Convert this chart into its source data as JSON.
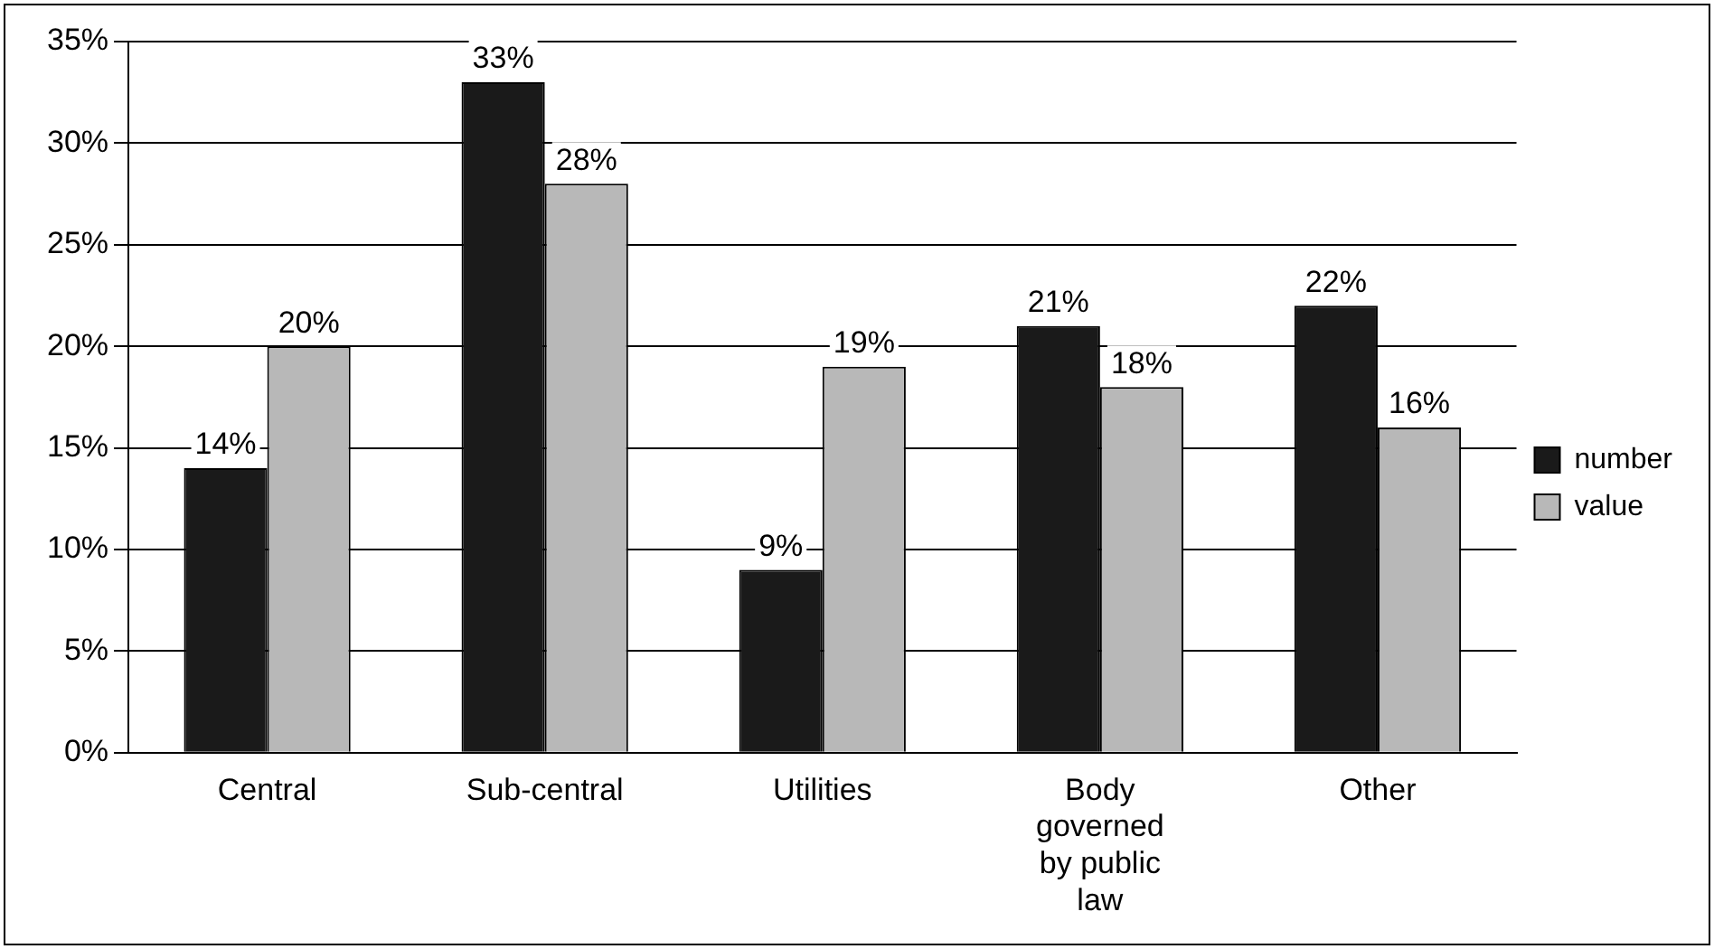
{
  "chart_data": {
    "type": "bar",
    "categories": [
      "Central",
      "Sub-central",
      "Utilities",
      "Body governed by public law",
      "Other"
    ],
    "series": [
      {
        "name": "number",
        "color": "#1a1a1a",
        "values": [
          14,
          33,
          9,
          21,
          22
        ],
        "value_labels": [
          "14%",
          "33%",
          "9%",
          "21%",
          "22%"
        ]
      },
      {
        "name": "value",
        "color": "#b8b8b8",
        "values": [
          20,
          28,
          19,
          18,
          16
        ],
        "value_labels": [
          "20%",
          "28%",
          "19%",
          "18%",
          "16%"
        ]
      }
    ],
    "ylim": [
      0,
      35
    ],
    "yticks": [
      {
        "value": 0,
        "label": "0%"
      },
      {
        "value": 5,
        "label": "5%"
      },
      {
        "value": 10,
        "label": "10%"
      },
      {
        "value": 15,
        "label": "15%"
      },
      {
        "value": 20,
        "label": "20%"
      },
      {
        "value": 25,
        "label": "25%"
      },
      {
        "value": 30,
        "label": "30%"
      },
      {
        "value": 35,
        "label": "35%"
      }
    ],
    "grid": "y",
    "legend": "right"
  }
}
